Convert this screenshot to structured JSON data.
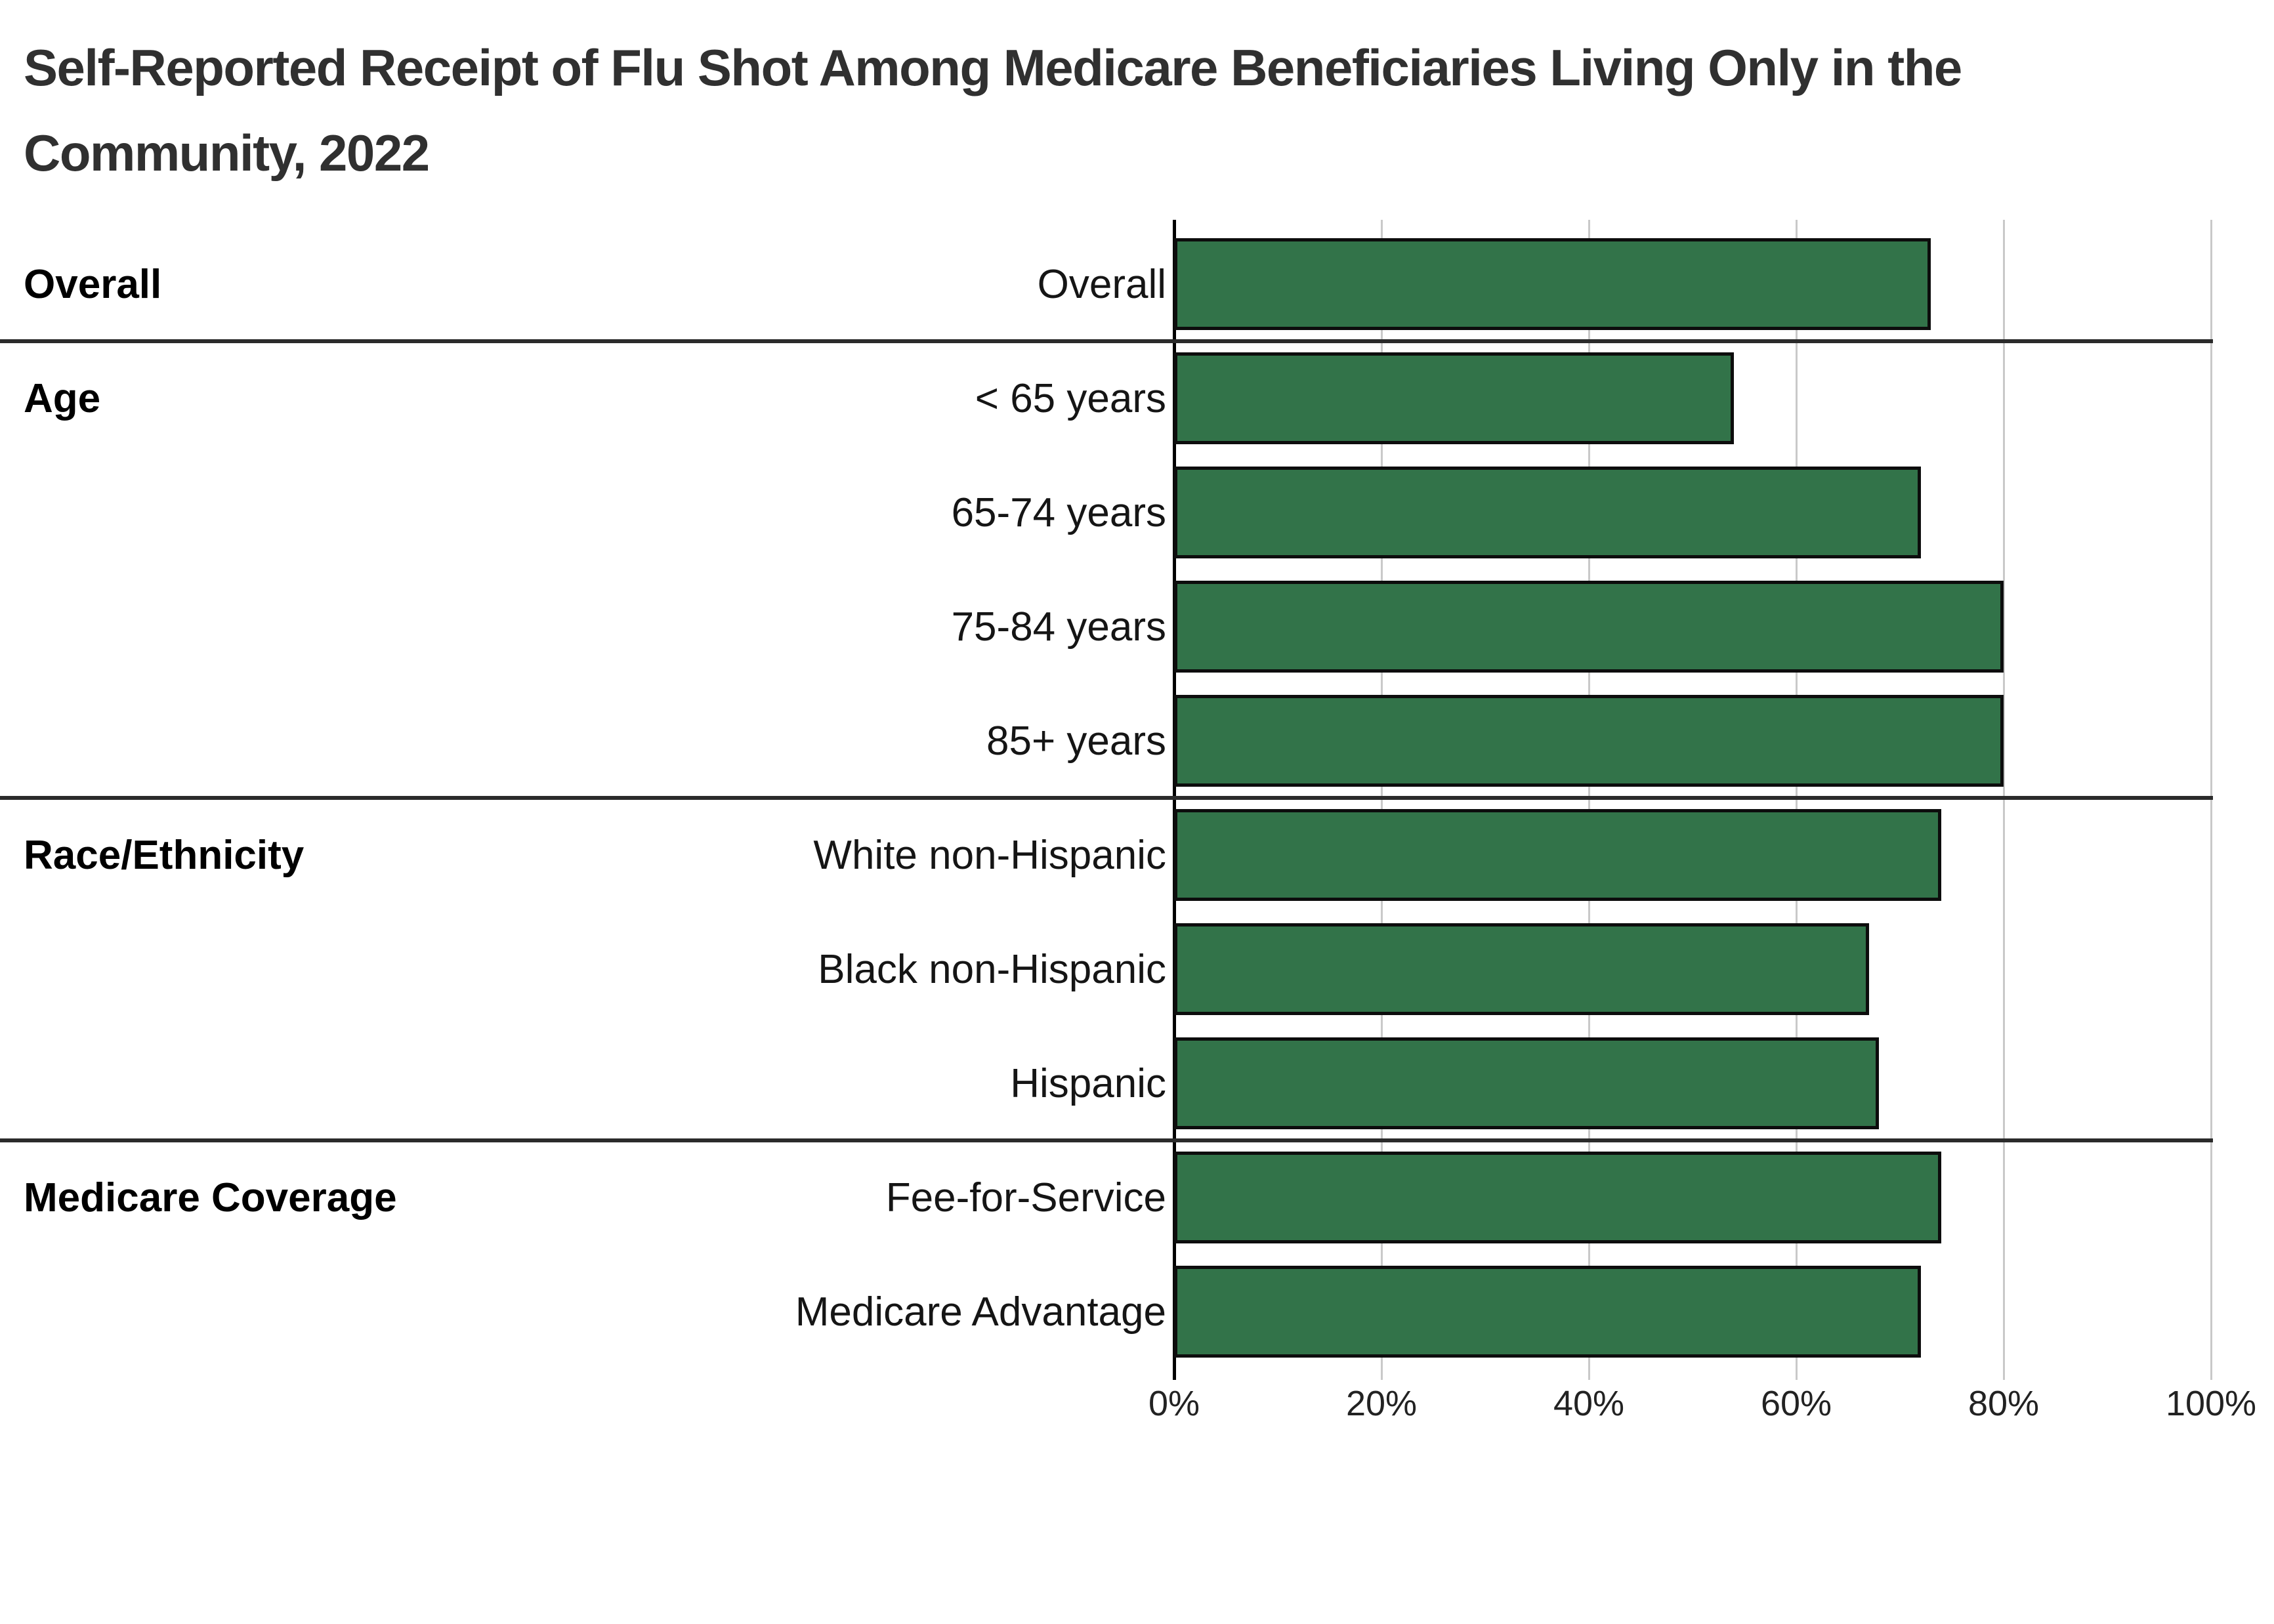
{
  "title": {
    "line1": "Self-Reported Receipt of Flu Shot Among Medicare Beneficiaries Living Only in the",
    "line2": "Community, 2022"
  },
  "chart_data": {
    "type": "bar",
    "orientation": "horizontal",
    "unit": "percent",
    "xlim": [
      0,
      100
    ],
    "x_tick_labels": [
      "0%",
      "20%",
      "40%",
      "60%",
      "80%",
      "100%"
    ],
    "x_tick_values": [
      0,
      20,
      40,
      60,
      80,
      100
    ],
    "grid": "vertical-gridlines-on",
    "legend": "none",
    "bar_fill_color": "#327349",
    "bar_border_color": "#0d0d0d",
    "gridline_color": "#c9c9c9",
    "separator_color": "#2b2b2b",
    "groups": [
      {
        "label": "Overall",
        "items": [
          {
            "label": "Overall",
            "value": 73
          }
        ]
      },
      {
        "label": "Age",
        "items": [
          {
            "label": "< 65 years",
            "value": 54
          },
          {
            "label": "65-74 years",
            "value": 72
          },
          {
            "label": "75-84 years",
            "value": 80
          },
          {
            "label": "85+ years",
            "value": 80
          }
        ]
      },
      {
        "label": "Race/Ethnicity",
        "items": [
          {
            "label": "White non-Hispanic",
            "value": 74
          },
          {
            "label": "Black non-Hispanic",
            "value": 67
          },
          {
            "label": "Hispanic",
            "value": 68
          }
        ]
      },
      {
        "label": "Medicare Coverage",
        "items": [
          {
            "label": "Fee-for-Service",
            "value": 74
          },
          {
            "label": "Medicare Advantage",
            "value": 72
          }
        ]
      }
    ]
  }
}
